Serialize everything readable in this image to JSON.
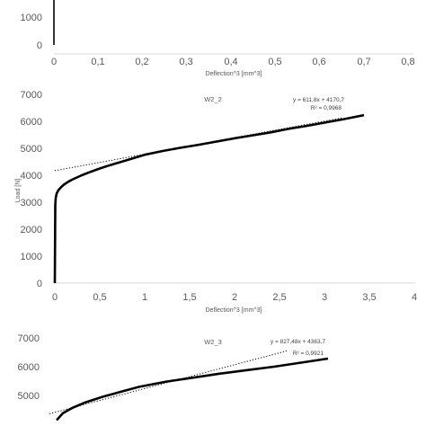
{
  "chart_data": [
    {
      "type": "line",
      "title": "",
      "xlabel": "Deflection^3 [mm^3]",
      "ylabel": "",
      "x_ticks": [
        "0",
        "0,1",
        "0,2",
        "0,3",
        "0,4",
        "0,5",
        "0,6",
        "0,7",
        "0,8"
      ],
      "y_ticks": [
        "0",
        "1000"
      ],
      "xlim": [
        0,
        0.8
      ],
      "ylim": [
        0,
        1900
      ],
      "grid": false,
      "series": [
        {
          "x": [
            0,
            0,
            0
          ],
          "y": [
            0,
            1000,
            1900
          ]
        }
      ]
    },
    {
      "type": "line",
      "title": "W2_2",
      "xlabel": "Deflection^3 [mm^3]",
      "ylabel": "Load [N]",
      "x_ticks": [
        "0",
        "0,5",
        "1",
        "1,5",
        "2",
        "2,5",
        "3",
        "3,5",
        "4"
      ],
      "y_ticks": [
        "0",
        "1000",
        "2000",
        "3000",
        "4000",
        "5000",
        "6000",
        "7000"
      ],
      "xlim": [
        0,
        4
      ],
      "ylim": [
        0,
        7000
      ],
      "grid": false,
      "series": [
        {
          "x": [
            0,
            0.005,
            0.01,
            0.02,
            0.04,
            0.07,
            0.1,
            0.15,
            0.2,
            0.3,
            0.4,
            0.5,
            0.6,
            0.7,
            0.8,
            0.9,
            1.0,
            1.2,
            1.4,
            1.6,
            1.8,
            2.0,
            2.2,
            2.4,
            2.6,
            2.8,
            3.0,
            3.2,
            3.44
          ],
          "y": [
            0,
            2900,
            3150,
            3320,
            3450,
            3560,
            3650,
            3760,
            3850,
            4000,
            4130,
            4250,
            4360,
            4460,
            4560,
            4660,
            4760,
            4900,
            5020,
            5130,
            5250,
            5370,
            5480,
            5590,
            5720,
            5830,
            5950,
            6070,
            6230
          ]
        }
      ],
      "trendline": {
        "slope": 611.8,
        "intercept": 4170.7,
        "x_range": [
          0,
          3.2
        ],
        "style": "dotted",
        "equation": "y = 611,8x + 4170,7",
        "r2": "R² = 0,9968"
      }
    },
    {
      "type": "line",
      "title": "W2_3",
      "xlabel": "",
      "ylabel": "",
      "x_ticks": [],
      "y_ticks": [
        "5000",
        "6000",
        "7000"
      ],
      "xlim": [
        0,
        4
      ],
      "ylim": [
        4000,
        7000
      ],
      "grid": false,
      "series": [
        {
          "x": [
            0.08,
            0.15,
            0.25,
            0.4,
            0.6,
            0.8,
            1.0,
            1.3,
            1.6,
            1.9,
            2.2,
            2.5,
            2.8,
            3.1
          ],
          "y": [
            4140,
            4380,
            4560,
            4760,
            4960,
            5130,
            5300,
            5480,
            5620,
            5760,
            5880,
            6000,
            6140,
            6280
          ]
        }
      ],
      "trendline": {
        "slope": 827.48,
        "intercept": 4363.7,
        "x_range": [
          0,
          2.65
        ],
        "style": "dotted",
        "equation": "y = 827,48x + 4363,7",
        "r2": "R² = 0,9921"
      }
    }
  ]
}
